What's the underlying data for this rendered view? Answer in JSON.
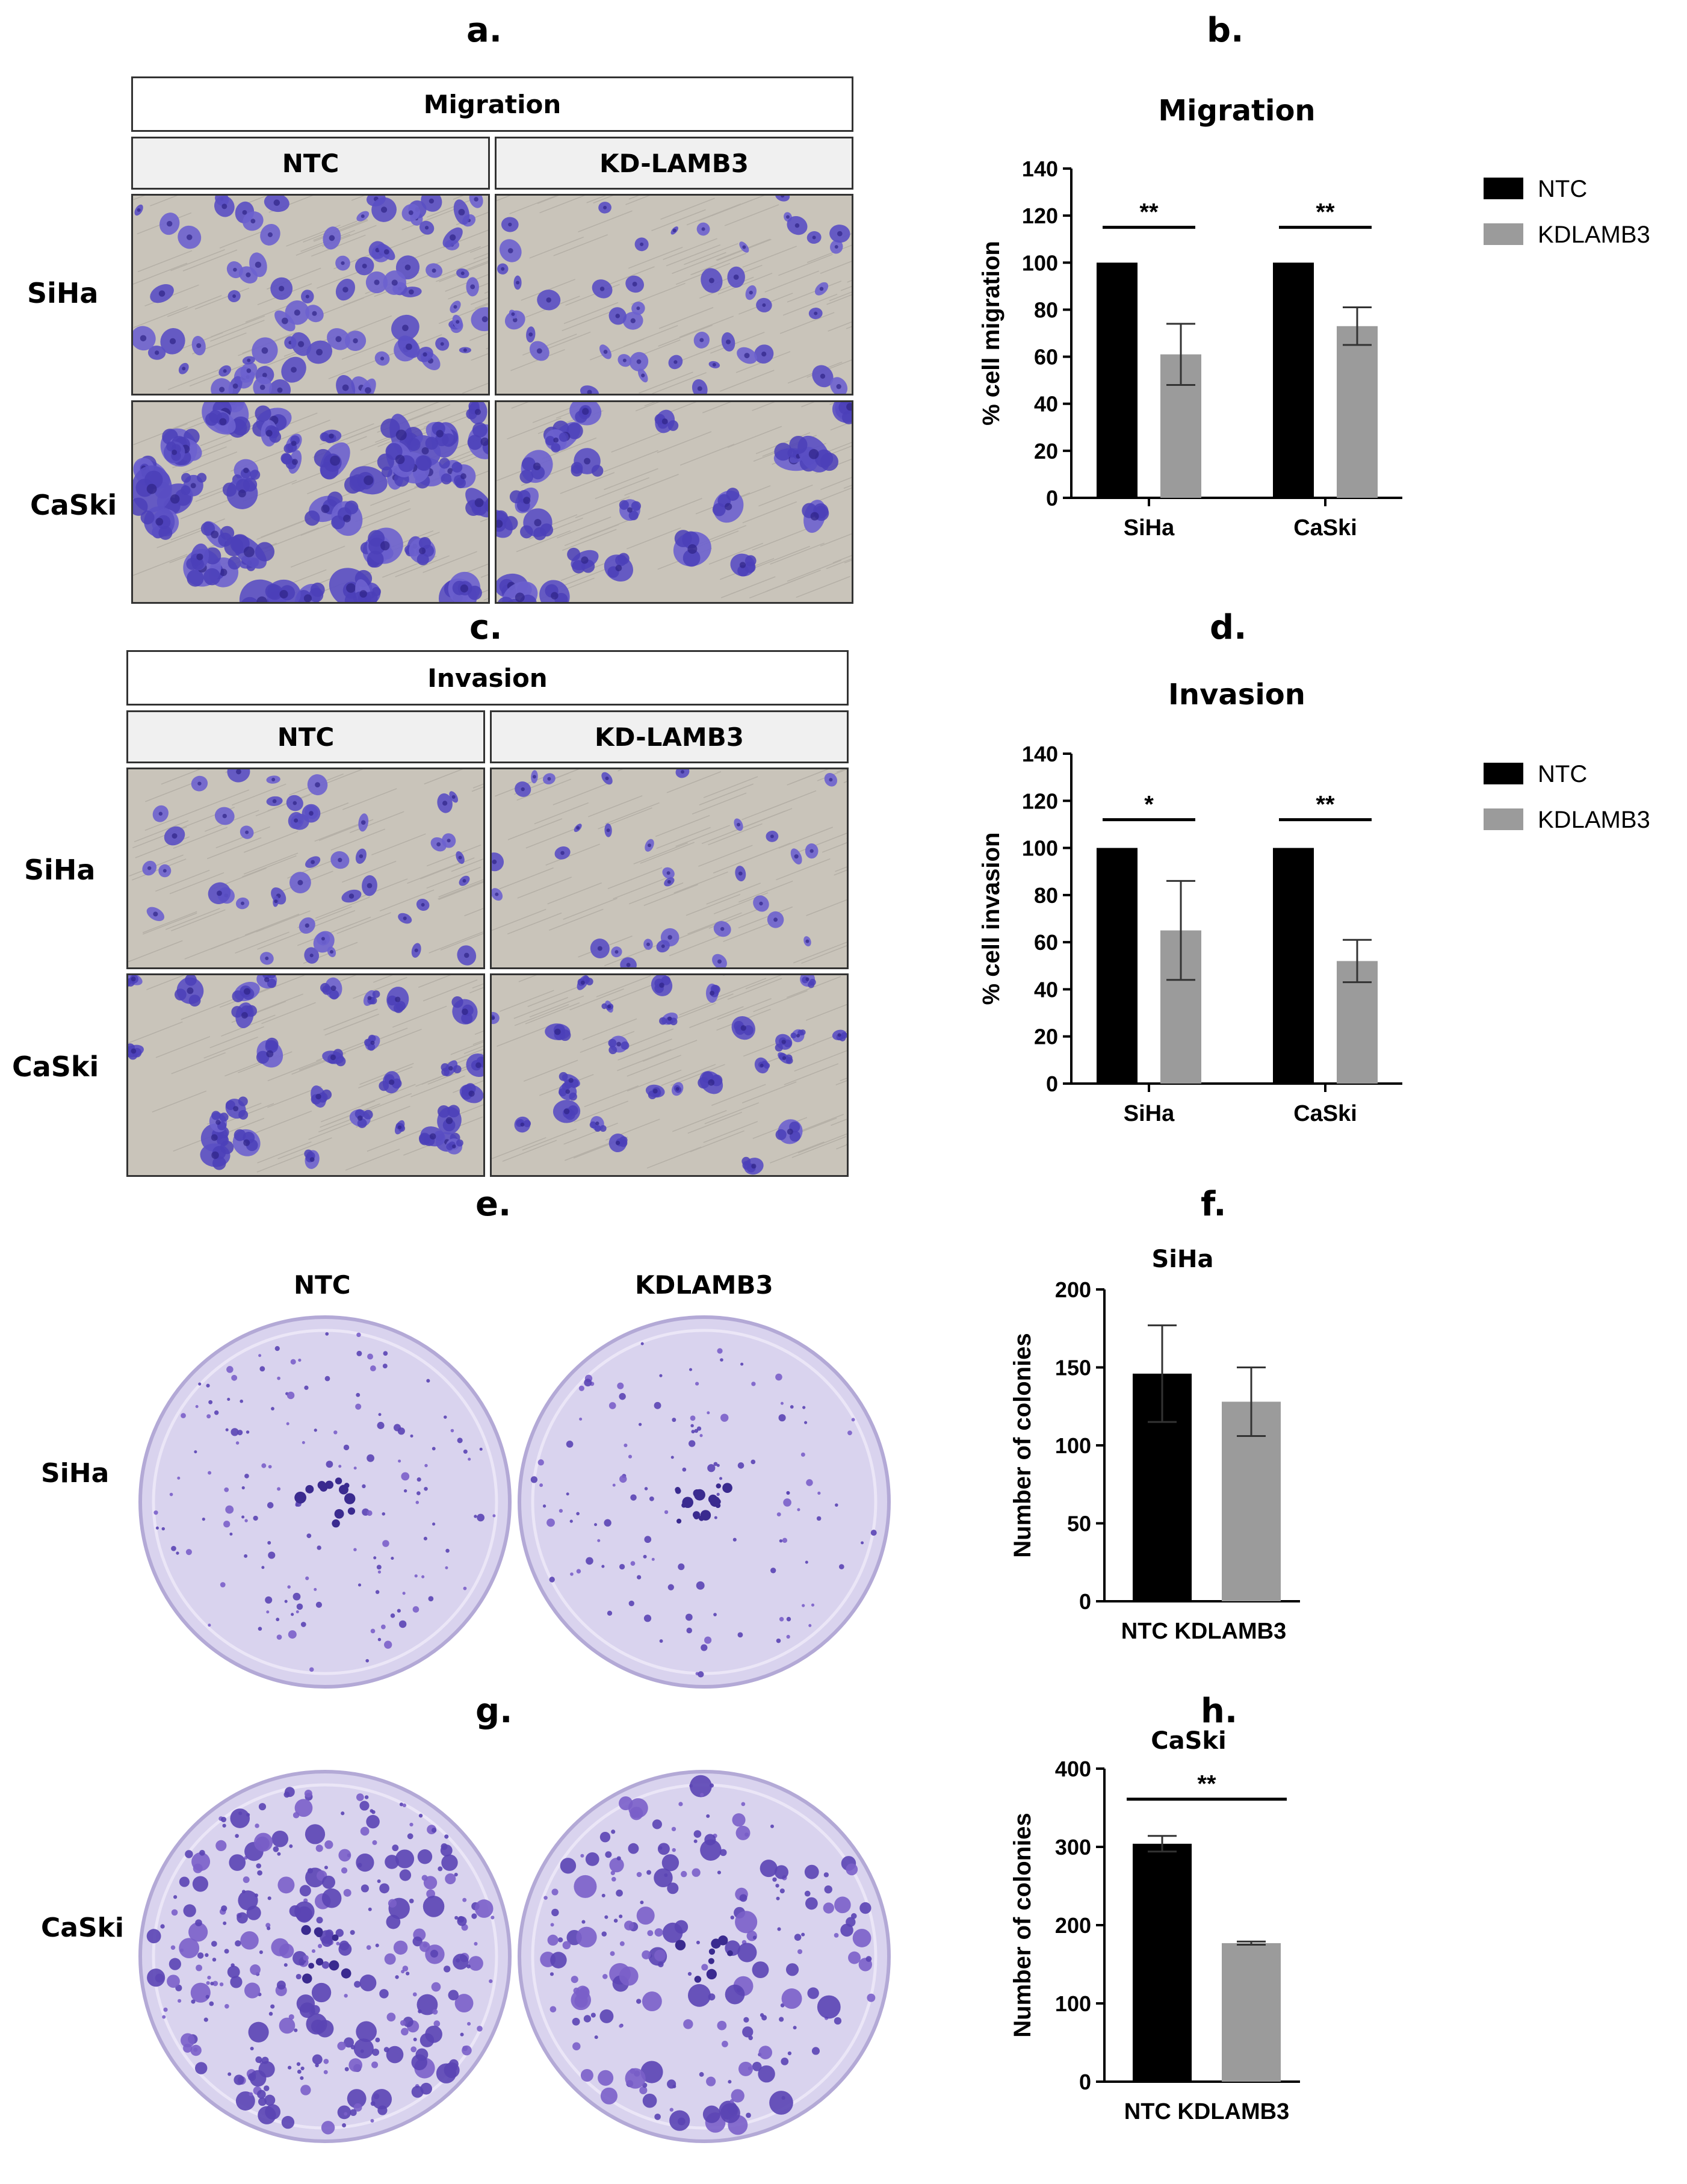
{
  "panels": {
    "a": {
      "letter": "a.",
      "header": "Migration",
      "cols": [
        "NTC",
        "KD-LAMB3"
      ],
      "rows": [
        "SiHa",
        "CaSki"
      ]
    },
    "b": {
      "letter": "b."
    },
    "c": {
      "letter": "c.",
      "header": "Invasion",
      "cols": [
        "NTC",
        "KD-LAMB3"
      ],
      "rows": [
        "SiHa",
        "CaSki"
      ]
    },
    "d": {
      "letter": "d."
    },
    "e": {
      "letter": "e.",
      "cols": [
        "NTC",
        "KDLAMB3"
      ],
      "row": "SiHa"
    },
    "f": {
      "letter": "f."
    },
    "g": {
      "letter": "g.",
      "row": "CaSki"
    },
    "h": {
      "letter": "h."
    }
  },
  "colors": {
    "NTC": "#000000",
    "KDLAMB3": "#9b9b9b",
    "stain": "#4b3fb8",
    "plate_bg": "#d9d3ee"
  },
  "chart_data": [
    {
      "id": "b",
      "type": "bar",
      "title": "Migration",
      "ylabel": "% cell migration",
      "ylim": [
        0,
        140
      ],
      "yticks": [
        0,
        20,
        40,
        60,
        80,
        100,
        120,
        140
      ],
      "categories": [
        "SiHa",
        "CaSki"
      ],
      "series": [
        {
          "name": "NTC",
          "values": [
            100,
            100
          ],
          "errors": [
            0,
            0
          ]
        },
        {
          "name": "KDLAMB3",
          "values": [
            61,
            73
          ],
          "errors": [
            13,
            8
          ]
        }
      ],
      "significance": [
        "**",
        "**"
      ],
      "legend": "top-right"
    },
    {
      "id": "d",
      "type": "bar",
      "title": "Invasion",
      "ylabel": "% cell invasion",
      "ylim": [
        0,
        140
      ],
      "yticks": [
        0,
        20,
        40,
        60,
        80,
        100,
        120,
        140
      ],
      "categories": [
        "SiHa",
        "CaSki"
      ],
      "series": [
        {
          "name": "NTC",
          "values": [
            100,
            100
          ],
          "errors": [
            0,
            0
          ]
        },
        {
          "name": "KDLAMB3",
          "values": [
            65,
            52
          ],
          "errors": [
            21,
            9
          ]
        }
      ],
      "significance": [
        "*",
        "**"
      ],
      "legend": "top-right"
    },
    {
      "id": "f",
      "type": "bar",
      "title": "SiHa",
      "ylabel": "Number of colonies",
      "ylim": [
        0,
        200
      ],
      "yticks": [
        0,
        50,
        100,
        150,
        200
      ],
      "categories": [
        "NTC",
        "KDLAMB3"
      ],
      "values": [
        146,
        128
      ],
      "errors": [
        31,
        22
      ],
      "significance": ""
    },
    {
      "id": "h",
      "type": "bar",
      "title": "CaSki",
      "ylabel": "Number of colonies",
      "ylim": [
        0,
        400
      ],
      "yticks": [
        0,
        100,
        200,
        300,
        400
      ],
      "categories": [
        "NTC",
        "KDLAMB3"
      ],
      "values": [
        304,
        177
      ],
      "errors": [
        10,
        2
      ],
      "significance": "**"
    }
  ]
}
